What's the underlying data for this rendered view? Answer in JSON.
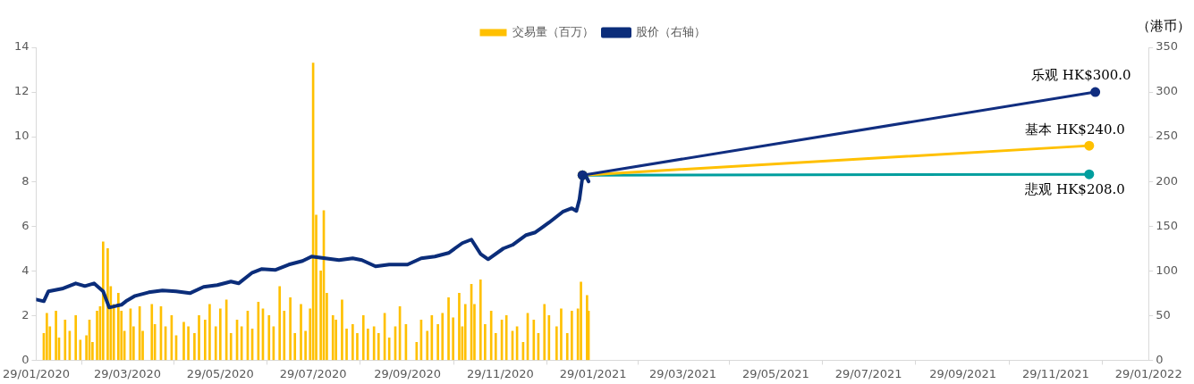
{
  "chart_data": {
    "type": "bar",
    "legend": "top",
    "y2label": "（港币）",
    "grid": false,
    "xlim": [
      "2020-01-29",
      "2022-01-29"
    ],
    "xticks": [
      {
        "value": "2020-01-29",
        "label": "29/01/2020"
      },
      {
        "value": "2020-03-29",
        "label": "29/03/2020"
      },
      {
        "value": "2020-05-29",
        "label": "29/05/2020"
      },
      {
        "value": "2020-07-29",
        "label": "29/07/2020"
      },
      {
        "value": "2020-09-29",
        "label": "29/09/2020"
      },
      {
        "value": "2020-11-29",
        "label": "29/11/2020"
      },
      {
        "value": "2021-01-29",
        "label": "29/01/2021"
      },
      {
        "value": "2021-03-29",
        "label": "29/03/2021"
      },
      {
        "value": "2021-05-29",
        "label": "29/05/2021"
      },
      {
        "value": "2021-07-29",
        "label": "29/07/2021"
      },
      {
        "value": "2021-09-29",
        "label": "29/09/2021"
      },
      {
        "value": "2021-11-29",
        "label": "29/11/2021"
      },
      {
        "value": "2022-01-29",
        "label": "29/01/2022"
      }
    ],
    "ylim": [
      0,
      14
    ],
    "yticks": [
      0,
      2,
      4,
      6,
      8,
      10,
      12,
      14
    ],
    "y2lim": [
      0,
      350
    ],
    "y2ticks": [
      0,
      50,
      100,
      150,
      200,
      250,
      300,
      350
    ],
    "series": [
      {
        "name": "交易量（百万）",
        "color": "#ffc000",
        "x": [
          "2020-02-03",
          "2020-02-05",
          "2020-02-07",
          "2020-02-11",
          "2020-02-13",
          "2020-02-17",
          "2020-02-20",
          "2020-02-24",
          "2020-02-27",
          "2020-03-02",
          "2020-03-04",
          "2020-03-06",
          "2020-03-09",
          "2020-03-11",
          "2020-03-13",
          "2020-03-16",
          "2020-03-18",
          "2020-03-20",
          "2020-03-23",
          "2020-03-25",
          "2020-03-27",
          "2020-03-31",
          "2020-04-02",
          "2020-04-06",
          "2020-04-08",
          "2020-04-14",
          "2020-04-16",
          "2020-04-20",
          "2020-04-23",
          "2020-04-27",
          "2020-04-30",
          "2020-05-05",
          "2020-05-08",
          "2020-05-12",
          "2020-05-15",
          "2020-05-19",
          "2020-05-22",
          "2020-05-26",
          "2020-05-29",
          "2020-06-02",
          "2020-06-05",
          "2020-06-09",
          "2020-06-12",
          "2020-06-16",
          "2020-06-19",
          "2020-06-23",
          "2020-06-26",
          "2020-06-30",
          "2020-07-03",
          "2020-07-07",
          "2020-07-10",
          "2020-07-14",
          "2020-07-17",
          "2020-07-21",
          "2020-07-24",
          "2020-07-27",
          "2020-07-29",
          "2020-07-31",
          "2020-08-03",
          "2020-08-05",
          "2020-08-07",
          "2020-08-11",
          "2020-08-13",
          "2020-08-17",
          "2020-08-20",
          "2020-08-24",
          "2020-08-27",
          "2020-08-31",
          "2020-09-03",
          "2020-09-07",
          "2020-09-10",
          "2020-09-14",
          "2020-09-17",
          "2020-09-21",
          "2020-09-24",
          "2020-09-28",
          "2020-10-05",
          "2020-10-08",
          "2020-10-12",
          "2020-10-15",
          "2020-10-19",
          "2020-10-22",
          "2020-10-26",
          "2020-10-29",
          "2020-11-02",
          "2020-11-04",
          "2020-11-06",
          "2020-11-10",
          "2020-11-12",
          "2020-11-16",
          "2020-11-19",
          "2020-11-23",
          "2020-11-26",
          "2020-11-30",
          "2020-12-03",
          "2020-12-07",
          "2020-12-10",
          "2020-12-14",
          "2020-12-17",
          "2020-12-21",
          "2020-12-24",
          "2020-12-28",
          "2020-12-31",
          "2021-01-05",
          "2021-01-08",
          "2021-01-12",
          "2021-01-15",
          "2021-01-19",
          "2021-01-21",
          "2021-01-25",
          "2021-01-26"
        ],
        "values": [
          1.2,
          2.1,
          1.5,
          2.2,
          1.0,
          1.8,
          1.3,
          2.0,
          0.9,
          1.1,
          1.8,
          0.8,
          2.2,
          2.4,
          5.3,
          5.0,
          3.3,
          2.5,
          3.0,
          2.2,
          1.3,
          2.3,
          1.5,
          2.4,
          1.3,
          2.5,
          1.6,
          2.4,
          1.5,
          2.0,
          1.1,
          1.7,
          1.5,
          1.2,
          2.0,
          1.8,
          2.5,
          1.5,
          2.3,
          2.7,
          1.2,
          1.8,
          1.5,
          2.2,
          1.4,
          2.6,
          2.3,
          2.0,
          1.5,
          3.3,
          2.2,
          2.8,
          1.2,
          2.5,
          1.3,
          2.3,
          13.3,
          6.5,
          4.0,
          6.7,
          3.0,
          2.0,
          1.8,
          2.7,
          1.4,
          1.6,
          1.2,
          2.0,
          1.4,
          1.5,
          1.2,
          2.1,
          1.0,
          1.5,
          2.4,
          1.6,
          0.8,
          1.8,
          1.3,
          2.0,
          1.6,
          2.1,
          2.8,
          1.9,
          3.0,
          1.5,
          2.5,
          3.4,
          2.5,
          3.6,
          1.6,
          2.2,
          1.2,
          1.8,
          2.0,
          1.3,
          1.5,
          0.8,
          2.1,
          1.8,
          1.2,
          2.5,
          2.0,
          1.5,
          2.3,
          1.2,
          2.2,
          2.3,
          3.5,
          2.9,
          2.2
        ]
      },
      {
        "name": "股价（右轴）",
        "type": "line",
        "axis": "y2",
        "color": "#0b2d7a",
        "marker": "none",
        "x": [
          "2020-01-29",
          "2020-02-03",
          "2020-02-06",
          "2020-02-15",
          "2020-02-24",
          "2020-03-01",
          "2020-03-07",
          "2020-03-13",
          "2020-03-17",
          "2020-03-22",
          "2020-03-25",
          "2020-03-28",
          "2020-04-03",
          "2020-04-12",
          "2020-04-21",
          "2020-04-30",
          "2020-05-09",
          "2020-05-18",
          "2020-05-27",
          "2020-06-05",
          "2020-06-10",
          "2020-06-19",
          "2020-06-25",
          "2020-07-04",
          "2020-07-13",
          "2020-07-22",
          "2020-07-28",
          "2020-08-06",
          "2020-08-15",
          "2020-08-24",
          "2020-08-30",
          "2020-09-08",
          "2020-09-17",
          "2020-09-29",
          "2020-10-08",
          "2020-10-17",
          "2020-10-26",
          "2020-11-04",
          "2020-11-10",
          "2020-11-16",
          "2020-11-21",
          "2020-12-01",
          "2020-12-07",
          "2020-12-16",
          "2020-12-22",
          "2020-12-31",
          "2021-01-09",
          "2021-01-15",
          "2021-01-18",
          "2021-01-20",
          "2021-01-22",
          "2021-01-24",
          "2021-01-26"
        ],
        "values": [
          68,
          66,
          77,
          80,
          86,
          83,
          86,
          77,
          59,
          61,
          62,
          66,
          72,
          76,
          78,
          77,
          75,
          82,
          84,
          88,
          86,
          98,
          102,
          101,
          107,
          111,
          116,
          114,
          112,
          114,
          112,
          105,
          107,
          107,
          114,
          116,
          120,
          131,
          135,
          119,
          113,
          125,
          129,
          140,
          143,
          154,
          166,
          170,
          167,
          180,
          205,
          207,
          200
        ]
      },
      {
        "type": "line",
        "axis": "y2",
        "color": "#112e80",
        "marker": "circle",
        "x": [
          "2021-01-22",
          "2021-12-25"
        ],
        "values": [
          207,
          300
        ],
        "value_labels": [
          null,
          "乐观 HK$300.0"
        ]
      },
      {
        "type": "line",
        "axis": "y2",
        "color": "#ffc000",
        "marker": "circle",
        "x": [
          "2021-01-22",
          "2021-12-21"
        ],
        "values": [
          207,
          240
        ],
        "value_labels": [
          null,
          "基本 HK$240.0"
        ]
      },
      {
        "type": "line",
        "axis": "y2",
        "color": "#009e9e",
        "marker": "circle",
        "x": [
          "2021-01-22",
          "2021-12-21"
        ],
        "values": [
          207,
          208
        ],
        "value_labels": [
          null,
          "悲观 HK$208.0"
        ]
      }
    ]
  }
}
